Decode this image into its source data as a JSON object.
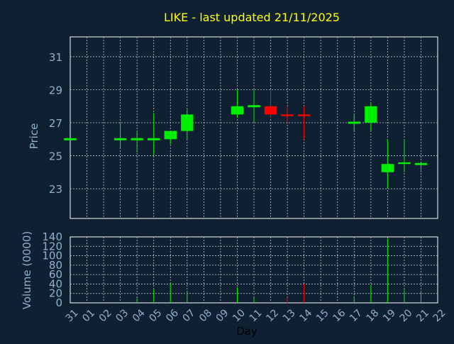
{
  "colors": {
    "background": "#0f2033",
    "frame": "#ffffff",
    "grid": "#c8c8c8",
    "title": "#ffff00",
    "label": "#8fb1cc",
    "up": "#00ee00",
    "down": "#ff0000",
    "x_label": "#000000"
  },
  "chart_data": {
    "type": "candlestick",
    "title": "LIKE - last updated 21/11/2025",
    "xlabel": "Day",
    "x_ticks": [
      "31",
      "01",
      "02",
      "03",
      "04",
      "05",
      "06",
      "07",
      "08",
      "09",
      "10",
      "11",
      "12",
      "13",
      "14",
      "15",
      "16",
      "17",
      "18",
      "19",
      "20",
      "21",
      "22"
    ],
    "price_panel": {
      "ylabel": "Price",
      "ylim": [
        21.2,
        32.2
      ],
      "y_ticks": [
        23,
        25,
        27,
        29,
        31
      ],
      "grid": true
    },
    "volume_panel": {
      "ylabel": "Volume (0000)",
      "ylim": [
        0,
        140
      ],
      "y_ticks": [
        0,
        20,
        40,
        60,
        80,
        100,
        120,
        140
      ],
      "grid": true
    },
    "candles": [
      {
        "x": 0,
        "open": 26.0,
        "high": 26.0,
        "low": 26.0,
        "close": 26.0,
        "volume": 0
      },
      {
        "x": 3,
        "open": 26.0,
        "high": 27.0,
        "low": 25.5,
        "close": 26.0,
        "volume": 2
      },
      {
        "x": 4,
        "open": 26.0,
        "high": 26.5,
        "low": 25.2,
        "close": 26.0,
        "volume": 10
      },
      {
        "x": 5,
        "open": 26.0,
        "high": 27.6,
        "low": 25.0,
        "close": 26.0,
        "volume": 28
      },
      {
        "x": 6,
        "open": 26.0,
        "high": 26.5,
        "low": 25.7,
        "close": 26.5,
        "volume": 42
      },
      {
        "x": 7,
        "open": 26.5,
        "high": 27.8,
        "low": 26.0,
        "close": 27.5,
        "volume": 25
      },
      {
        "x": 10,
        "open": 27.5,
        "high": 29.0,
        "low": 27.3,
        "close": 28.0,
        "volume": 33
      },
      {
        "x": 11,
        "open": 28.0,
        "high": 29.0,
        "low": 27.0,
        "close": 28.0,
        "volume": 12
      },
      {
        "x": 12,
        "open": 28.0,
        "high": 29.0,
        "low": 27.3,
        "close": 27.5,
        "volume": 3
      },
      {
        "x": 13,
        "open": 27.5,
        "high": 28.0,
        "low": 27.0,
        "close": 27.4,
        "volume": 12
      },
      {
        "x": 14,
        "open": 27.5,
        "high": 28.0,
        "low": 26.0,
        "close": 27.4,
        "volume": 41
      },
      {
        "x": 17,
        "open": 27.0,
        "high": 27.5,
        "low": 26.5,
        "close": 27.0,
        "volume": 14
      },
      {
        "x": 18,
        "open": 27.0,
        "high": 28.2,
        "low": 26.5,
        "close": 28.0,
        "volume": 38
      },
      {
        "x": 19,
        "open": 24.0,
        "high": 26.0,
        "low": 23.0,
        "close": 24.5,
        "volume": 136
      },
      {
        "x": 20,
        "open": 24.5,
        "high": 26.0,
        "low": 24.0,
        "close": 24.6,
        "volume": 28
      },
      {
        "x": 21,
        "open": 24.5,
        "high": 24.5,
        "low": 24.0,
        "close": 24.5,
        "volume": 26
      }
    ]
  }
}
